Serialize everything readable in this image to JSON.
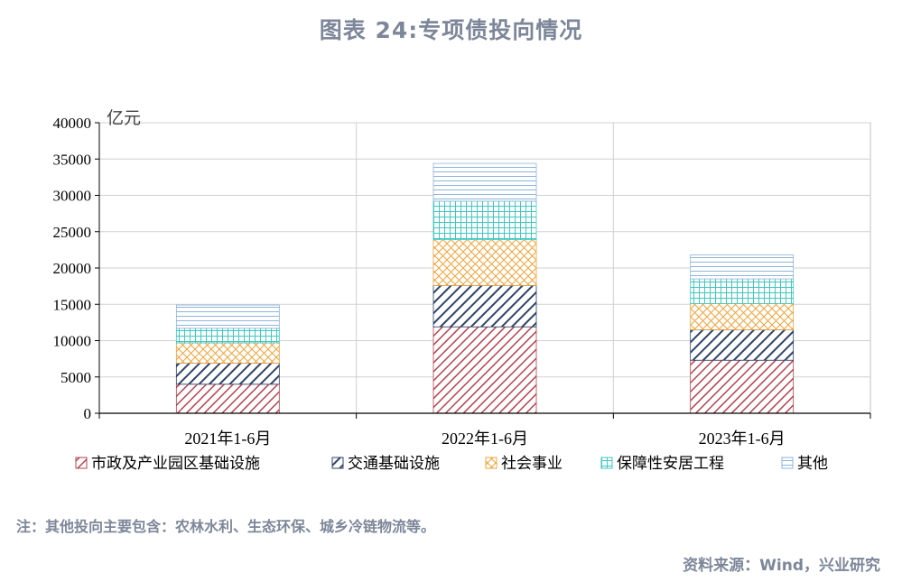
{
  "title": "图表 24:专项债投向情况",
  "note": "注：其他投向主要包含：农林水利、生态环保、城乡冷链物流等。",
  "source": "资料来源：Wind，兴业研究",
  "chart_data": {
    "type": "bar",
    "stacked": true,
    "categories": [
      "2021年1-6月",
      "2022年1-6月",
      "2023年1-6月"
    ],
    "unit": "亿元",
    "ylim": [
      0,
      40000
    ],
    "yticks": [
      0,
      5000,
      10000,
      15000,
      20000,
      25000,
      30000,
      35000,
      40000
    ],
    "grid": true,
    "legend_position": "bottom",
    "series": [
      {
        "name": "市政及产业园区基础设施",
        "values": [
          4000,
          11900,
          7300
        ],
        "color": "#b5424f",
        "pattern": "diag"
      },
      {
        "name": "交通基础设施",
        "values": [
          2900,
          5700,
          4200
        ],
        "color": "#2f4468",
        "pattern": "diag"
      },
      {
        "name": "社会事业",
        "values": [
          2800,
          6300,
          3600
        ],
        "color": "#f0a43a",
        "pattern": "cross"
      },
      {
        "name": "保障性安居工程",
        "values": [
          2000,
          5300,
          3400
        ],
        "color": "#3cc8c0",
        "pattern": "grid"
      },
      {
        "name": "其他",
        "values": [
          3200,
          5200,
          3300
        ],
        "color": "#8fb4d9",
        "pattern": "hlines"
      }
    ]
  }
}
